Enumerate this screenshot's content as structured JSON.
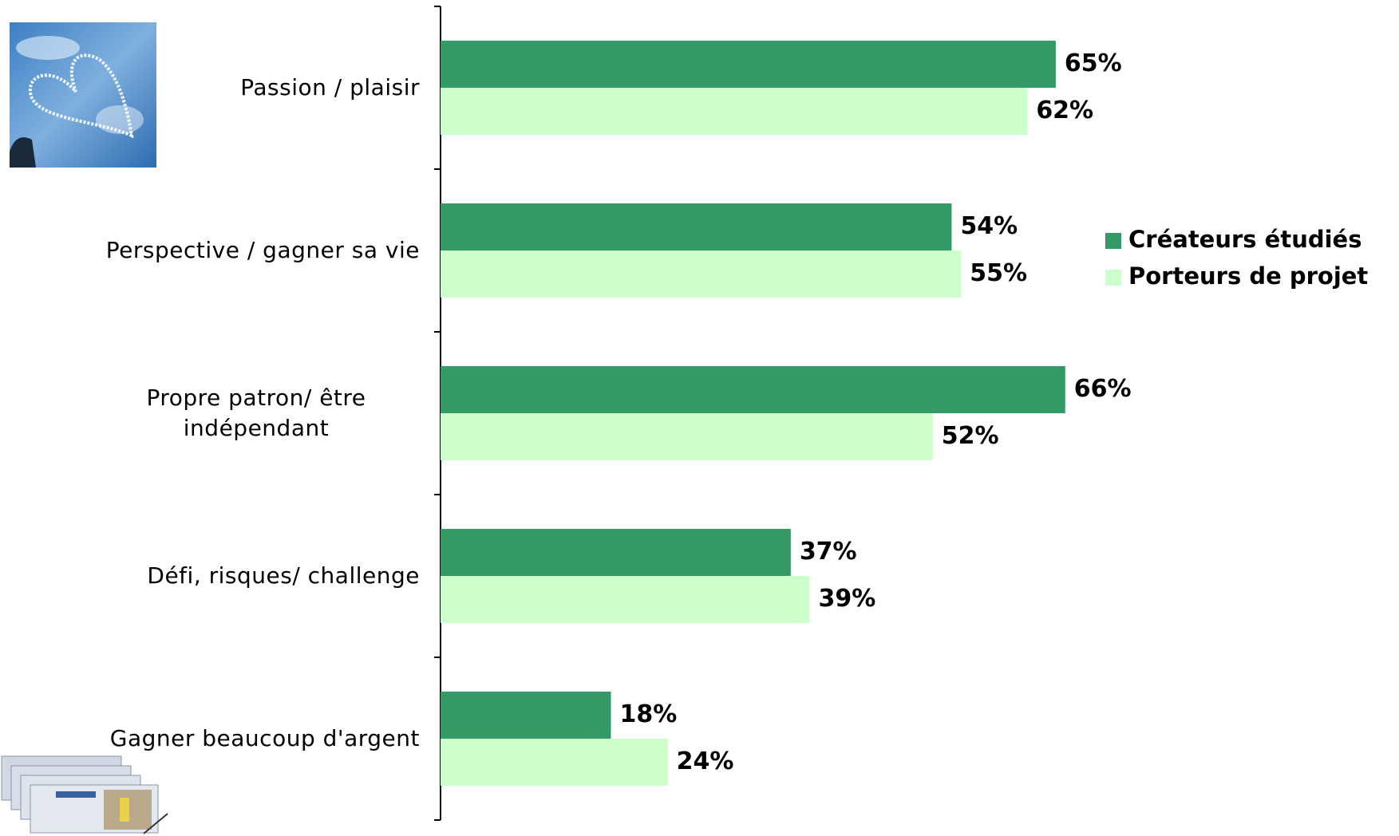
{
  "chart_data": {
    "type": "bar",
    "orientation": "horizontal",
    "categories": [
      "Passion / plaisir",
      "Perspective / gagner sa vie",
      "Propre patron/ être indépendant",
      "Défi, risques/ challenge",
      "Gagner beaucoup d'argent"
    ],
    "series": [
      {
        "name": "Créateurs étudiés",
        "color": "#339966",
        "values": [
          65,
          54,
          66,
          37,
          18
        ],
        "value_labels": [
          "65%",
          "54%",
          "66%",
          "37%",
          "18%"
        ]
      },
      {
        "name": "Porteurs de projet",
        "color": "#ccffcc",
        "values": [
          62,
          55,
          52,
          39,
          24
        ],
        "value_labels": [
          "62%",
          "55%",
          "52%",
          "39%",
          "24%"
        ]
      }
    ]
  }
}
